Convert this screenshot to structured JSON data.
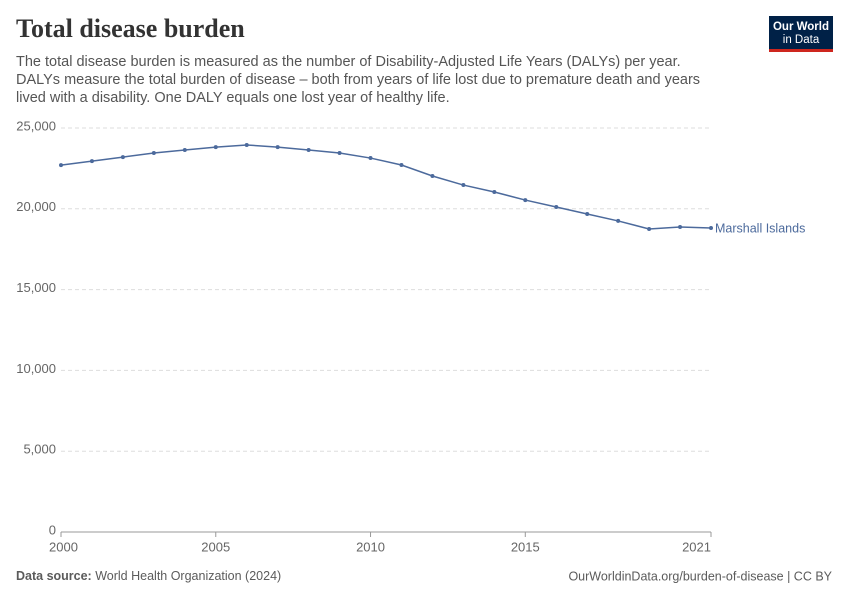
{
  "chart_data": {
    "type": "line",
    "title": "Total disease burden",
    "subtitle": [
      "The total disease burden is measured as the number of Disability-Adjusted Life Years (DALYs) per year.",
      "DALYs measure the total burden of disease – both from years of life lost due to premature death and years",
      "lived with a disability. One DALY equals one lost year of healthy life."
    ],
    "logo": [
      "Our World",
      "in Data"
    ],
    "source_label": "Data source:",
    "source": "World Health Organization (2024)",
    "footer_right": "OurWorldinData.org/burden-of-disease | CC BY",
    "x": [
      2000,
      2001,
      2002,
      2003,
      2004,
      2005,
      2006,
      2007,
      2008,
      2009,
      2010,
      2011,
      2012,
      2013,
      2014,
      2015,
      2016,
      2017,
      2018,
      2019,
      2020,
      2021
    ],
    "series": [
      {
        "name": "Marshall Islands",
        "color": "#4c6a9c",
        "values": [
          22700,
          22950,
          23200,
          23450,
          23640,
          23820,
          23950,
          23820,
          23640,
          23450,
          23140,
          22710,
          22030,
          21470,
          21040,
          20540,
          20110,
          19680,
          19250,
          18750,
          18870,
          18810
        ]
      }
    ],
    "xlim": [
      2000,
      2021
    ],
    "xticks": [
      2000,
      2005,
      2010,
      2015,
      2021
    ],
    "ylim": [
      0,
      25000
    ],
    "yticks": [
      0,
      {
        "value": 5000,
        "label": "5,000"
      },
      {
        "value": 10000,
        "label": "10,000"
      },
      {
        "value": 15000,
        "label": "15,000"
      },
      {
        "value": 20000,
        "label": "20,000"
      },
      {
        "value": 25000,
        "label": "25,000"
      }
    ],
    "grid": true
  }
}
